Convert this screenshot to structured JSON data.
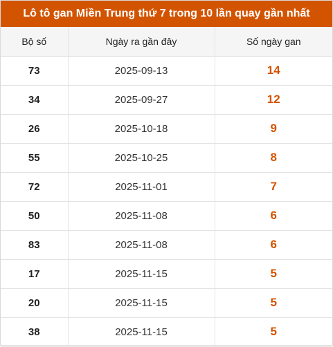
{
  "title": "Lô tô gan Miền Trung thứ 7 trong 10 lần quay gần nhất",
  "accent_color": "#d35400",
  "columns": [
    "Bộ số",
    "Ngày ra gần đây",
    "Số ngày gan"
  ],
  "rows": [
    {
      "number": "73",
      "date": "2025-09-13",
      "days": "14"
    },
    {
      "number": "34",
      "date": "2025-09-27",
      "days": "12"
    },
    {
      "number": "26",
      "date": "2025-10-18",
      "days": "9"
    },
    {
      "number": "55",
      "date": "2025-10-25",
      "days": "8"
    },
    {
      "number": "72",
      "date": "2025-11-01",
      "days": "7"
    },
    {
      "number": "50",
      "date": "2025-11-08",
      "days": "6"
    },
    {
      "number": "83",
      "date": "2025-11-08",
      "days": "6"
    },
    {
      "number": "17",
      "date": "2025-11-15",
      "days": "5"
    },
    {
      "number": "20",
      "date": "2025-11-15",
      "days": "5"
    },
    {
      "number": "38",
      "date": "2025-11-15",
      "days": "5"
    }
  ]
}
